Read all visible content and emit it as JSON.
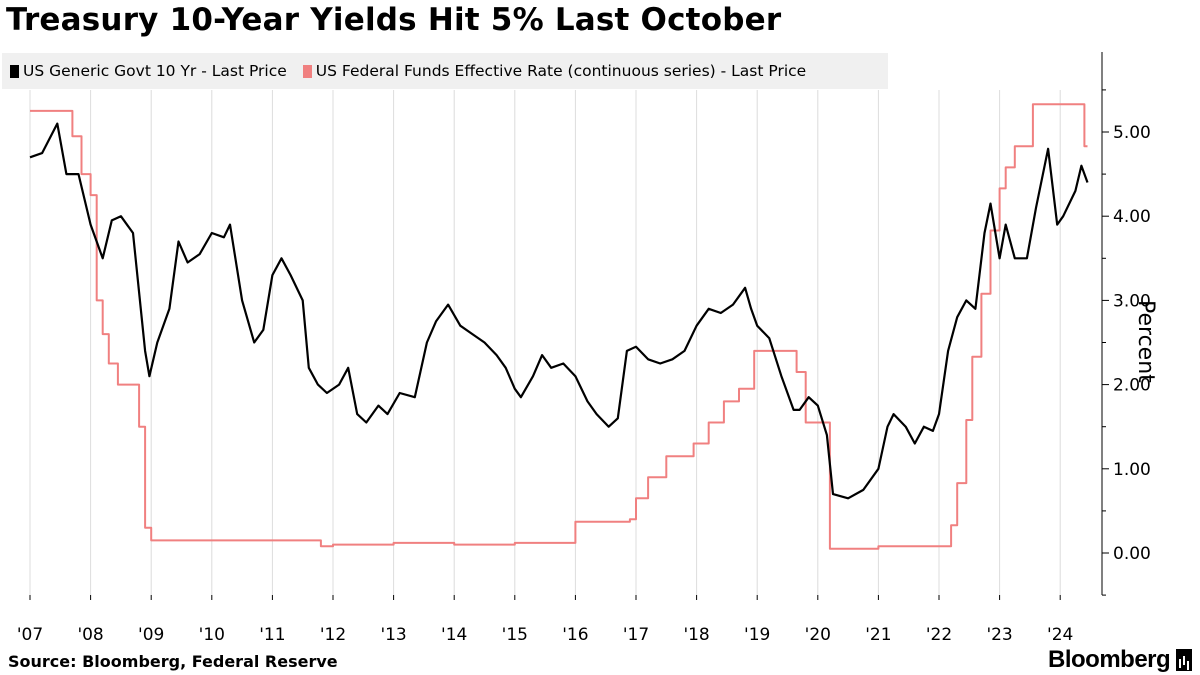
{
  "chart_data": {
    "type": "line",
    "title": "Treasury 10-Year Yields Hit 5% Last October",
    "ylabel": "Percent",
    "ylim": [
      -0.5,
      5.9
    ],
    "xlim": [
      2007.0,
      2024.5
    ],
    "y_ticks": [
      "0.00",
      "1.00",
      "2.00",
      "3.00",
      "4.00",
      "5.00"
    ],
    "x_ticks": [
      "'07",
      "'08",
      "'09",
      "'10",
      "'11",
      "'12",
      "'13",
      "'14",
      "'15",
      "'16",
      "'17",
      "'18",
      "'19",
      "'20",
      "'21",
      "'22",
      "'23",
      "'24"
    ],
    "legend_position": "top-left",
    "series": [
      {
        "name": "US Generic Govt 10 Yr - Last Price",
        "color": "#000000",
        "x": [
          2007.0,
          2007.2,
          2007.45,
          2007.6,
          2007.8,
          2008.0,
          2008.2,
          2008.35,
          2008.5,
          2008.7,
          2008.9,
          2008.97,
          2009.1,
          2009.3,
          2009.45,
          2009.6,
          2009.8,
          2010.0,
          2010.2,
          2010.3,
          2010.5,
          2010.7,
          2010.85,
          2011.0,
          2011.15,
          2011.3,
          2011.5,
          2011.6,
          2011.75,
          2011.9,
          2012.1,
          2012.25,
          2012.4,
          2012.55,
          2012.75,
          2012.9,
          2013.1,
          2013.35,
          2013.55,
          2013.7,
          2013.9,
          2014.1,
          2014.3,
          2014.5,
          2014.7,
          2014.85,
          2015.0,
          2015.1,
          2015.3,
          2015.45,
          2015.6,
          2015.8,
          2016.0,
          2016.2,
          2016.35,
          2016.55,
          2016.7,
          2016.85,
          2017.0,
          2017.2,
          2017.4,
          2017.6,
          2017.8,
          2018.0,
          2018.2,
          2018.4,
          2018.6,
          2018.8,
          2018.9,
          2019.0,
          2019.2,
          2019.4,
          2019.6,
          2019.7,
          2019.85,
          2020.0,
          2020.15,
          2020.25,
          2020.5,
          2020.75,
          2021.0,
          2021.15,
          2021.25,
          2021.45,
          2021.6,
          2021.75,
          2021.9,
          2022.0,
          2022.15,
          2022.3,
          2022.45,
          2022.6,
          2022.75,
          2022.85,
          2023.0,
          2023.1,
          2023.25,
          2023.45,
          2023.6,
          2023.8,
          2023.95,
          2024.05,
          2024.25,
          2024.35,
          2024.45
        ],
        "values": [
          4.7,
          4.75,
          5.1,
          4.5,
          4.5,
          3.9,
          3.5,
          3.95,
          4.0,
          3.8,
          2.4,
          2.1,
          2.5,
          2.9,
          3.7,
          3.45,
          3.55,
          3.8,
          3.75,
          3.9,
          3.0,
          2.5,
          2.65,
          3.3,
          3.5,
          3.3,
          3.0,
          2.2,
          2.0,
          1.9,
          2.0,
          2.2,
          1.65,
          1.55,
          1.75,
          1.65,
          1.9,
          1.85,
          2.5,
          2.75,
          2.95,
          2.7,
          2.6,
          2.5,
          2.35,
          2.2,
          1.95,
          1.85,
          2.1,
          2.35,
          2.2,
          2.25,
          2.1,
          1.8,
          1.65,
          1.5,
          1.6,
          2.4,
          2.45,
          2.3,
          2.25,
          2.3,
          2.4,
          2.7,
          2.9,
          2.85,
          2.95,
          3.15,
          2.9,
          2.7,
          2.55,
          2.1,
          1.7,
          1.7,
          1.85,
          1.75,
          1.4,
          0.7,
          0.65,
          0.75,
          1.0,
          1.5,
          1.65,
          1.5,
          1.3,
          1.5,
          1.45,
          1.65,
          2.4,
          2.8,
          3.0,
          2.9,
          3.8,
          4.15,
          3.5,
          3.9,
          3.5,
          3.5,
          4.1,
          4.8,
          3.9,
          4.0,
          4.3,
          4.6,
          4.4
        ],
        "data_source_note": ""
      },
      {
        "name": "US Federal Funds Effective Rate (continuous series) - Last Price",
        "color": "#f08080",
        "x": [
          2007.0,
          2007.55,
          2007.7,
          2007.85,
          2008.0,
          2008.1,
          2008.2,
          2008.3,
          2008.45,
          2008.7,
          2008.8,
          2008.9,
          2009.0,
          2010.0,
          2011.0,
          2011.8,
          2012.0,
          2013.0,
          2014.0,
          2015.0,
          2015.9,
          2016.0,
          2016.9,
          2017.0,
          2017.2,
          2017.5,
          2017.95,
          2018.2,
          2018.45,
          2018.7,
          2018.95,
          2019.55,
          2019.65,
          2019.8,
          2020.1,
          2020.2,
          2021.0,
          2022.0,
          2022.2,
          2022.3,
          2022.45,
          2022.55,
          2022.7,
          2022.85,
          2023.0,
          2023.1,
          2023.25,
          2023.55,
          2024.0,
          2024.35,
          2024.4,
          2024.45
        ],
        "values": [
          5.25,
          5.25,
          4.95,
          4.5,
          4.25,
          3.0,
          2.6,
          2.25,
          2.0,
          2.0,
          1.5,
          0.3,
          0.15,
          0.15,
          0.15,
          0.08,
          0.1,
          0.12,
          0.1,
          0.12,
          0.12,
          0.37,
          0.4,
          0.65,
          0.9,
          1.15,
          1.3,
          1.55,
          1.8,
          1.95,
          2.4,
          2.4,
          2.15,
          1.55,
          1.55,
          0.05,
          0.08,
          0.08,
          0.33,
          0.83,
          1.58,
          2.33,
          3.08,
          3.83,
          4.33,
          4.58,
          4.83,
          5.33,
          5.33,
          5.33,
          4.83,
          4.83
        ],
        "data_source_note": ""
      }
    ]
  },
  "legend": {
    "items": [
      {
        "label": "US Generic Govt 10 Yr - Last Price",
        "color": "#000000"
      },
      {
        "label": "US Federal Funds Effective Rate (continuous series) - Last Price",
        "color": "#f08080"
      }
    ]
  },
  "footer": {
    "source": "Source: Bloomberg, Federal Reserve",
    "brand": "Bloomberg"
  }
}
